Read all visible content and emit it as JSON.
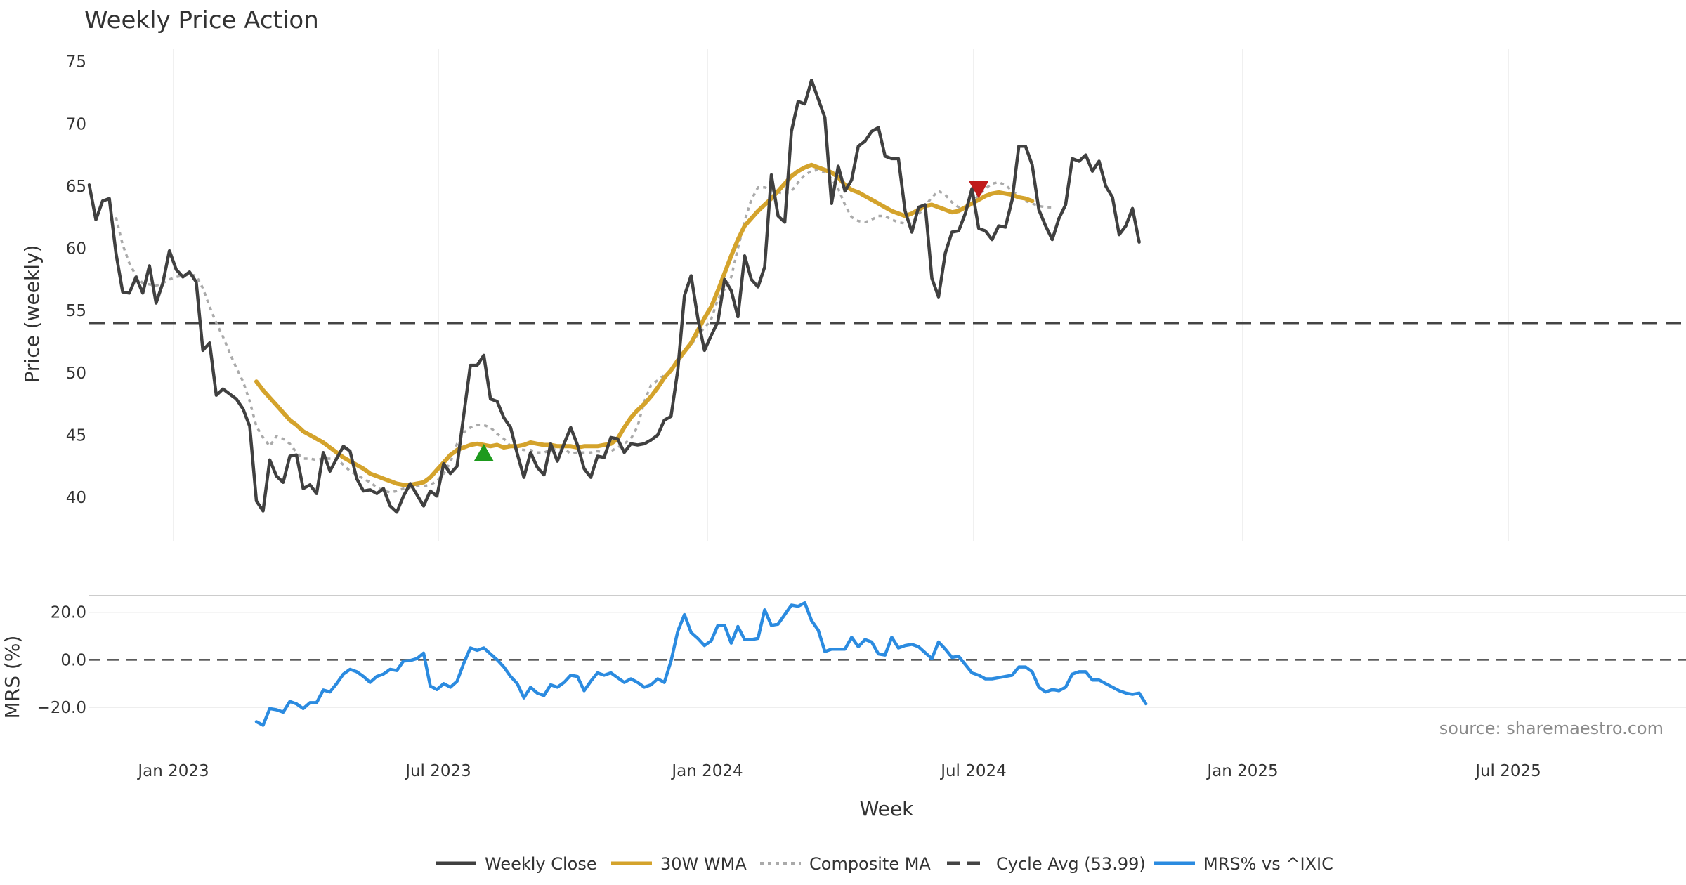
{
  "chart_data": {
    "type": "line",
    "title": "Weekly Price Action",
    "xlabel": "Week",
    "source": "source: sharemaestro.com",
    "x_tick_labels": [
      "Jan 2023",
      "Jul 2023",
      "Jan 2024",
      "Jul 2024",
      "Jan 2025",
      "Jul 2025"
    ],
    "price_panel": {
      "ylabel": "Price (weekly)",
      "ylim": [
        36.5,
        76
      ],
      "yticks": [
        40,
        45,
        50,
        55,
        60,
        65,
        70,
        75
      ],
      "series": [
        {
          "name": "Weekly Close",
          "color": "#404040",
          "style": "solid",
          "start_index": 0,
          "values": [
            65.1,
            62.3,
            63.8,
            64.0,
            59.6,
            56.5,
            56.4,
            57.7,
            56.4,
            58.6,
            55.6,
            57.2,
            59.8,
            58.3,
            57.7,
            58.1,
            57.3,
            51.8,
            52.4,
            48.2,
            48.7,
            48.3,
            47.9,
            47.1,
            45.7,
            39.7,
            38.9,
            43.0,
            41.7,
            41.2,
            43.3,
            43.4,
            40.7,
            41.0,
            40.3,
            43.6,
            42.1,
            43.1,
            44.1,
            43.7,
            41.5,
            40.5,
            40.6,
            40.3,
            40.7,
            39.3,
            38.8,
            40.1,
            41.1,
            40.2,
            39.3,
            40.5,
            40.1,
            42.7,
            41.9,
            42.5,
            46.6,
            50.6,
            50.6,
            51.4,
            47.9,
            47.7,
            46.4,
            45.6,
            43.5,
            41.6,
            43.6,
            42.4,
            41.8,
            44.3,
            42.9,
            44.3,
            45.6,
            44.2,
            42.3,
            41.6,
            43.3,
            43.2,
            44.8,
            44.7,
            43.6,
            44.3,
            44.2,
            44.3,
            44.6,
            45.0,
            46.2,
            46.5,
            50.2,
            56.2,
            57.8,
            54.4,
            51.8,
            53.0,
            54.1,
            57.5,
            56.6,
            54.5,
            59.4,
            57.5,
            56.9,
            58.5,
            65.9,
            62.6,
            62.1,
            69.4,
            71.8,
            71.6,
            73.5,
            72.0,
            70.5,
            63.6,
            66.6,
            64.6,
            65.5,
            68.2,
            68.6,
            69.4,
            69.7,
            67.4,
            67.2,
            67.2,
            63.0,
            61.3,
            63.3,
            63.5,
            57.6,
            56.1,
            59.6,
            61.3,
            61.4,
            62.8,
            64.8,
            61.6,
            61.4,
            60.7,
            61.8,
            61.7,
            63.9,
            68.2,
            68.2,
            66.7,
            63.1,
            61.8,
            60.7,
            62.4,
            63.5,
            67.2,
            67.0,
            67.5,
            66.2,
            67.0,
            65.0,
            64.1,
            61.1,
            61.8,
            63.2,
            60.5
          ]
        },
        {
          "name": "30W WMA",
          "color": "#d4a32c",
          "style": "solid",
          "start_index": 25,
          "values": [
            49.3,
            48.6,
            48.0,
            47.4,
            46.8,
            46.2,
            45.8,
            45.3,
            45.0,
            44.7,
            44.4,
            44.0,
            43.6,
            43.2,
            42.9,
            42.6,
            42.3,
            41.9,
            41.7,
            41.5,
            41.3,
            41.1,
            41.0,
            41.0,
            41.1,
            41.2,
            41.6,
            42.2,
            42.8,
            43.4,
            43.8,
            44.0,
            44.2,
            44.3,
            44.2,
            44.1,
            44.2,
            44.0,
            44.1,
            44.1,
            44.2,
            44.4,
            44.3,
            44.2,
            44.2,
            44.1,
            44.1,
            44.1,
            44.0,
            44.1,
            44.1,
            44.1,
            44.2,
            44.3,
            44.7,
            45.6,
            46.4,
            47.0,
            47.5,
            48.1,
            48.8,
            49.6,
            50.2,
            51.0,
            51.7,
            52.4,
            53.4,
            54.4,
            55.3,
            56.6,
            58.0,
            59.4,
            60.7,
            61.8,
            62.4,
            63.0,
            63.5,
            64.0,
            64.6,
            65.2,
            65.8,
            66.2,
            66.5,
            66.7,
            66.5,
            66.3,
            66.1,
            65.7,
            65.1,
            64.7,
            64.5,
            64.2,
            63.9,
            63.6,
            63.3,
            63.0,
            62.8,
            62.6,
            62.8,
            63.1,
            63.4,
            63.5,
            63.3,
            63.1,
            62.9,
            63.0,
            63.3,
            63.6,
            63.9,
            64.2,
            64.4,
            64.5,
            64.4,
            64.3,
            64.1,
            64.0,
            63.8
          ]
        },
        {
          "name": "Composite MA",
          "color": "#aaaaaa",
          "style": "dotted",
          "start_index": 4,
          "values": [
            62.5,
            60.3,
            58.8,
            57.8,
            57.2,
            57.1,
            57.0,
            57.2,
            57.5,
            57.7,
            57.8,
            57.9,
            57.8,
            56.8,
            55.3,
            54.0,
            52.9,
            51.6,
            50.4,
            49.3,
            47.7,
            45.7,
            44.8,
            44.1,
            44.9,
            44.7,
            44.3,
            43.6,
            43.1,
            43.1,
            43.0,
            43.1,
            43.1,
            43.1,
            42.6,
            42.1,
            41.8,
            41.5,
            41.2,
            40.8,
            40.5,
            40.4,
            40.5,
            40.7,
            40.8,
            40.9,
            40.9,
            41.0,
            41.3,
            41.9,
            42.8,
            44.3,
            45.2,
            45.6,
            45.8,
            45.8,
            45.6,
            45.1,
            44.7,
            44.1,
            43.9,
            43.8,
            43.8,
            43.6,
            43.6,
            43.8,
            43.9,
            43.9,
            43.5,
            43.6,
            43.6,
            43.6,
            43.7,
            43.6,
            43.7,
            44.0,
            44.3,
            44.7,
            45.7,
            47.7,
            49.0,
            49.4,
            49.8,
            50.2,
            51.1,
            51.7,
            52.2,
            53.1,
            53.6,
            54.3,
            55.9,
            56.7,
            57.7,
            60.0,
            62.2,
            63.9,
            64.9,
            64.9,
            64.7,
            64.5,
            64.4,
            64.6,
            65.3,
            65.9,
            66.2,
            66.3,
            66.1,
            65.6,
            64.8,
            63.5,
            62.5,
            62.2,
            62.1,
            62.3,
            62.6,
            62.6,
            62.3,
            62.1,
            62.0,
            62.0,
            62.7,
            63.4,
            64.1,
            64.6,
            64.3,
            63.7,
            63.3,
            63.3,
            63.6,
            64.3,
            64.8,
            65.2,
            65.3,
            65.1,
            64.6,
            64.2,
            63.8,
            63.6,
            63.4,
            63.3,
            63.3
          ]
        }
      ],
      "reference_line": {
        "name": "Cycle Avg (53.99)",
        "value": 53.99,
        "color": "#444444",
        "style": "dashed"
      },
      "markers": [
        {
          "type": "buy",
          "shape": "triangle-up",
          "index": 59,
          "value": 43.5,
          "color": "#1d9a1d"
        },
        {
          "type": "sell",
          "shape": "triangle-down",
          "index": 133,
          "value": 64.8,
          "color": "#c01a1a"
        }
      ]
    },
    "mrs_panel": {
      "ylabel": "MRS (%)",
      "ylim": [
        -30,
        27
      ],
      "yticks": [
        20,
        0,
        -20
      ],
      "ytick_labels": [
        "20.0",
        "0.0",
        "−20.0"
      ],
      "zero_line": {
        "value": 0,
        "color": "#444444",
        "style": "dashed"
      },
      "series": {
        "name": "MRS% vs ^IXIC",
        "color": "#2b8be0",
        "start_index": 25,
        "values": [
          -26.0,
          -27.5,
          -20.5,
          -21.0,
          -22.0,
          -17.5,
          -18.5,
          -20.5,
          -18.0,
          -18.0,
          -12.7,
          -13.5,
          -10.0,
          -6.0,
          -4.0,
          -5.0,
          -7.0,
          -9.5,
          -7.0,
          -6.0,
          -4.0,
          -4.5,
          -0.5,
          -0.3,
          0.5,
          2.8,
          -11.0,
          -12.5,
          -10.0,
          -11.5,
          -9.0,
          -1.5,
          5.0,
          4.0,
          5.0,
          2.5,
          0.0,
          -3.0,
          -7.0,
          -10.0,
          -16.0,
          -11.5,
          -14.0,
          -15.0,
          -10.5,
          -11.5,
          -9.5,
          -6.5,
          -7.0,
          -13.0,
          -9.0,
          -5.5,
          -6.5,
          -5.5,
          -7.5,
          -9.5,
          -8.0,
          -9.5,
          -11.5,
          -10.5,
          -8.0,
          -9.5,
          -0.5,
          12.0,
          19.0,
          11.5,
          9.0,
          6.0,
          8.0,
          14.5,
          14.5,
          7.0,
          14.0,
          8.5,
          8.5,
          9.0,
          21.0,
          14.5,
          15.0,
          19.0,
          23.0,
          22.5,
          24.0,
          16.5,
          12.5,
          3.5,
          4.5,
          4.5,
          4.5,
          9.5,
          5.5,
          8.5,
          7.5,
          2.5,
          2.0,
          9.5,
          5.0,
          6.0,
          6.5,
          5.5,
          3.0,
          0.5,
          7.5,
          4.5,
          1.0,
          1.5,
          -2.0,
          -5.5,
          -6.5,
          -8.0,
          -8.0,
          -7.5,
          -7.0,
          -6.5,
          -3.0,
          -3.0,
          -5.0,
          -11.5,
          -13.5,
          -12.5,
          -13.0,
          -11.5,
          -6.0,
          -5.0,
          -5.0,
          -8.5,
          -8.5,
          -10.0,
          -11.5,
          -13.0,
          -14.0,
          -14.5,
          -14.0,
          -18.5
        ]
      }
    },
    "legend": [
      {
        "label": "Weekly Close",
        "color": "#404040",
        "style": "solid"
      },
      {
        "label": "30W WMA",
        "color": "#d4a32c",
        "style": "solid"
      },
      {
        "label": "Composite MA",
        "color": "#aaaaaa",
        "style": "dotted"
      },
      {
        "label": "Cycle Avg (53.99)",
        "color": "#444444",
        "style": "dashed"
      },
      {
        "label": "MRS% vs ^IXIC",
        "color": "#2b8be0",
        "style": "solid"
      }
    ]
  }
}
